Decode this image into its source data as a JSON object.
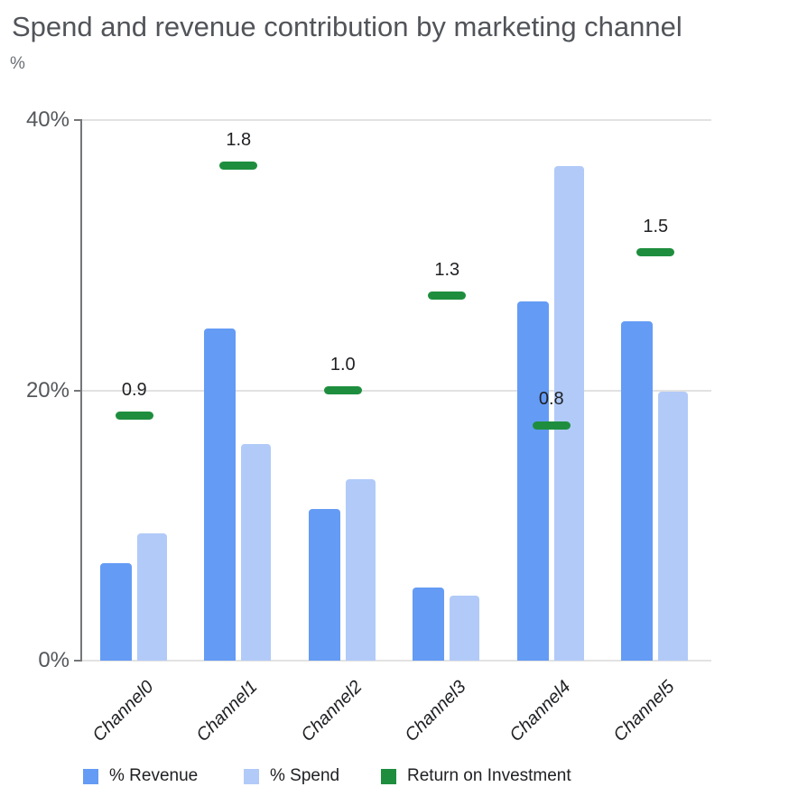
{
  "chart_data": {
    "type": "bar",
    "title": "Spend and revenue contribution by marketing channel",
    "ylabel": "%",
    "xlabel": "",
    "categories": [
      "Channel0",
      "Channel1",
      "Channel2",
      "Channel3",
      "Channel4",
      "Channel5"
    ],
    "series": [
      {
        "name": "% Revenue",
        "render": "bar",
        "color": "#649bf5",
        "values": [
          7.2,
          24.6,
          11.2,
          5.4,
          26.6,
          25.1
        ]
      },
      {
        "name": "% Spend",
        "render": "bar",
        "color": "#b1caf8",
        "values": [
          9.4,
          16.0,
          13.4,
          4.8,
          36.6,
          19.9
        ]
      },
      {
        "name": "Return on Investment",
        "render": "dash-marker",
        "color": "#1e8e3e",
        "values": [
          0.9,
          1.8,
          1.0,
          1.3,
          0.8,
          1.5
        ],
        "value_labels": [
          "0.9",
          "1.8",
          "1.0",
          "1.3",
          "0.8",
          "1.5"
        ],
        "marker_y_on_percent_axis": [
          18.1,
          36.6,
          20.0,
          27.0,
          17.4,
          30.2
        ]
      }
    ],
    "ylim": [
      0,
      40
    ],
    "yticks": [
      {
        "value": 0,
        "label": "0%"
      },
      {
        "value": 20,
        "label": "20%"
      },
      {
        "value": 40,
        "label": "40%"
      }
    ],
    "grid": true,
    "legend_position": "bottom",
    "colors": {
      "grid": "#e2e2e2",
      "axis": "#747678",
      "tick_label": "#54575b",
      "title": "#515459",
      "text": "#202124"
    }
  }
}
